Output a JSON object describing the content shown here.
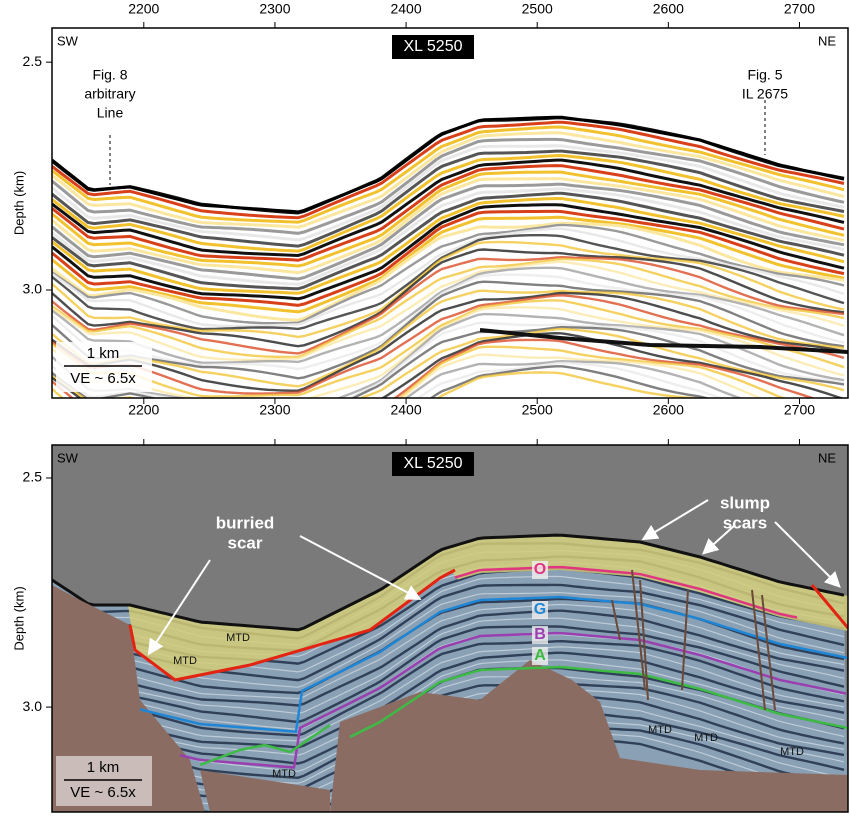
{
  "panels": [
    {
      "title": "XL 5250",
      "left_label": "SW",
      "right_label": "NE",
      "y_axis_label": "Depth (km)",
      "xlim": [
        2130,
        2737
      ],
      "xticks": [
        2200,
        2300,
        2400,
        2500,
        2600,
        2700
      ],
      "ylim": [
        2.425,
        3.237
      ],
      "y_inverted": true,
      "yticks": [
        2.5,
        {
          "value": 3,
          "label": "3.0"
        }
      ],
      "annotations": [
        {
          "lines": [
            "Fig. 8",
            "arbitrary",
            "Line"
          ]
        },
        {
          "lines": [
            "Fig. 5",
            "IL 2675"
          ]
        }
      ],
      "scale_bar": [
        "1 km",
        "VE ~ 6.5x"
      ]
    },
    {
      "title": "XL 5250",
      "left_label": "SW",
      "right_label": "NE",
      "y_axis_label": "Depth (km)",
      "ylim": [
        2.428,
        3.229
      ],
      "y_inverted": true,
      "yticks": [
        2.5,
        {
          "value": 3,
          "label": "3.0"
        }
      ],
      "annotations": [
        {
          "lines": [
            "burried",
            "scar"
          ]
        },
        {
          "lines": [
            "slump",
            "scars"
          ]
        }
      ],
      "horizons": [
        {
          "name": "O",
          "color": "#e0357f"
        },
        {
          "name": "G",
          "color": "#1f86d6"
        },
        {
          "name": "B",
          "color": "#9a3fb0"
        },
        {
          "name": "A",
          "color": "#3dbb45"
        }
      ],
      "deposit_labels": [
        "MTD",
        "MTD",
        "MTD",
        "MTD",
        "MTD",
        "MTD"
      ],
      "scale_bar": [
        "1 km",
        "VE ~ 6.5x"
      ]
    }
  ]
}
